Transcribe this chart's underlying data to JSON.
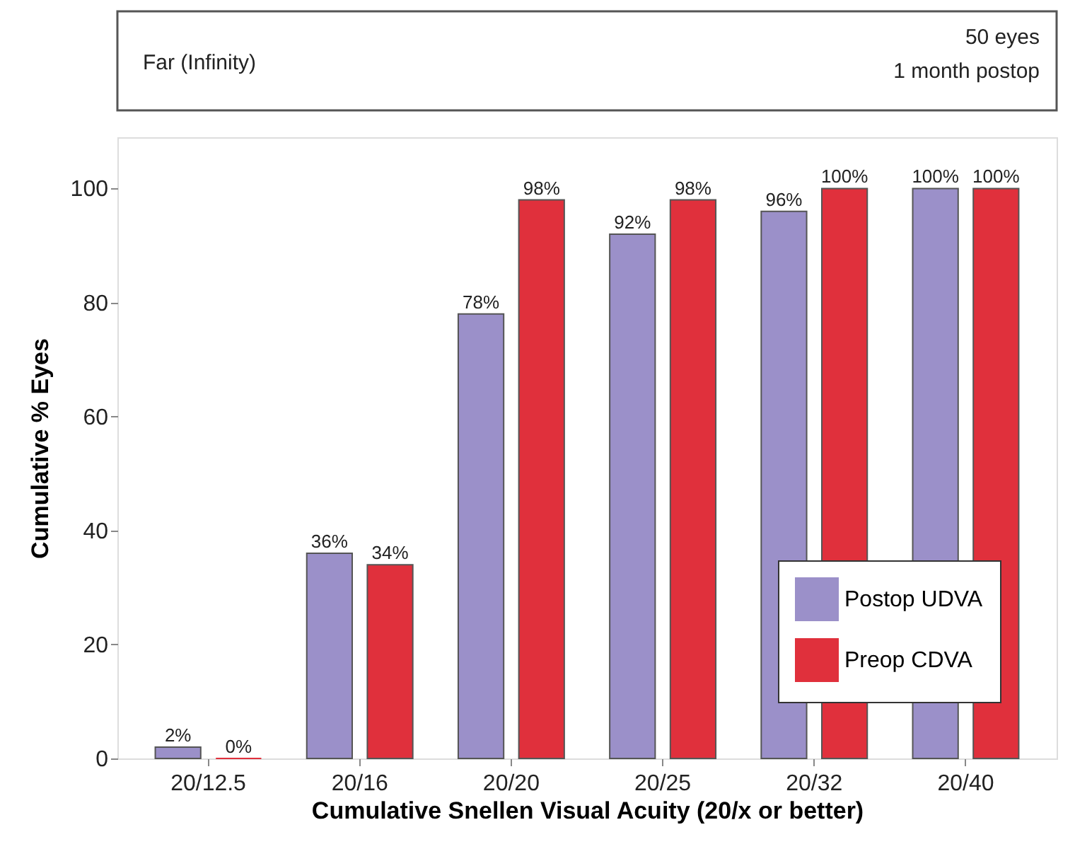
{
  "chart_data": {
    "type": "bar",
    "xlabel": "Cumulative Snellen Visual Acuity (20/x or better)",
    "ylabel": "Cumulative % Eyes",
    "annotations": [
      "Far (Infinity)",
      "50 eyes",
      "1 month postop"
    ],
    "categories": [
      "20/12.5",
      "20/16",
      "20/20",
      "20/25",
      "20/32",
      "20/40"
    ],
    "series": [
      {
        "name": "Postop UDVA",
        "color": "#9b90c9",
        "values": [
          2,
          36,
          78,
          92,
          96,
          100
        ],
        "value_labels": [
          "2%",
          "36%",
          "78%",
          "92%",
          "96%",
          "100%"
        ]
      },
      {
        "name": "Preop CDVA",
        "color": "#e0303c",
        "values": [
          0,
          34,
          98,
          98,
          100,
          100
        ],
        "value_labels": [
          "0%",
          "34%",
          "98%",
          "98%",
          "100%",
          "100%"
        ]
      }
    ],
    "ylim": [
      0,
      109
    ],
    "yticks": [
      0,
      20,
      40,
      60,
      80,
      100
    ],
    "grid": false,
    "legend": "bottom right"
  }
}
